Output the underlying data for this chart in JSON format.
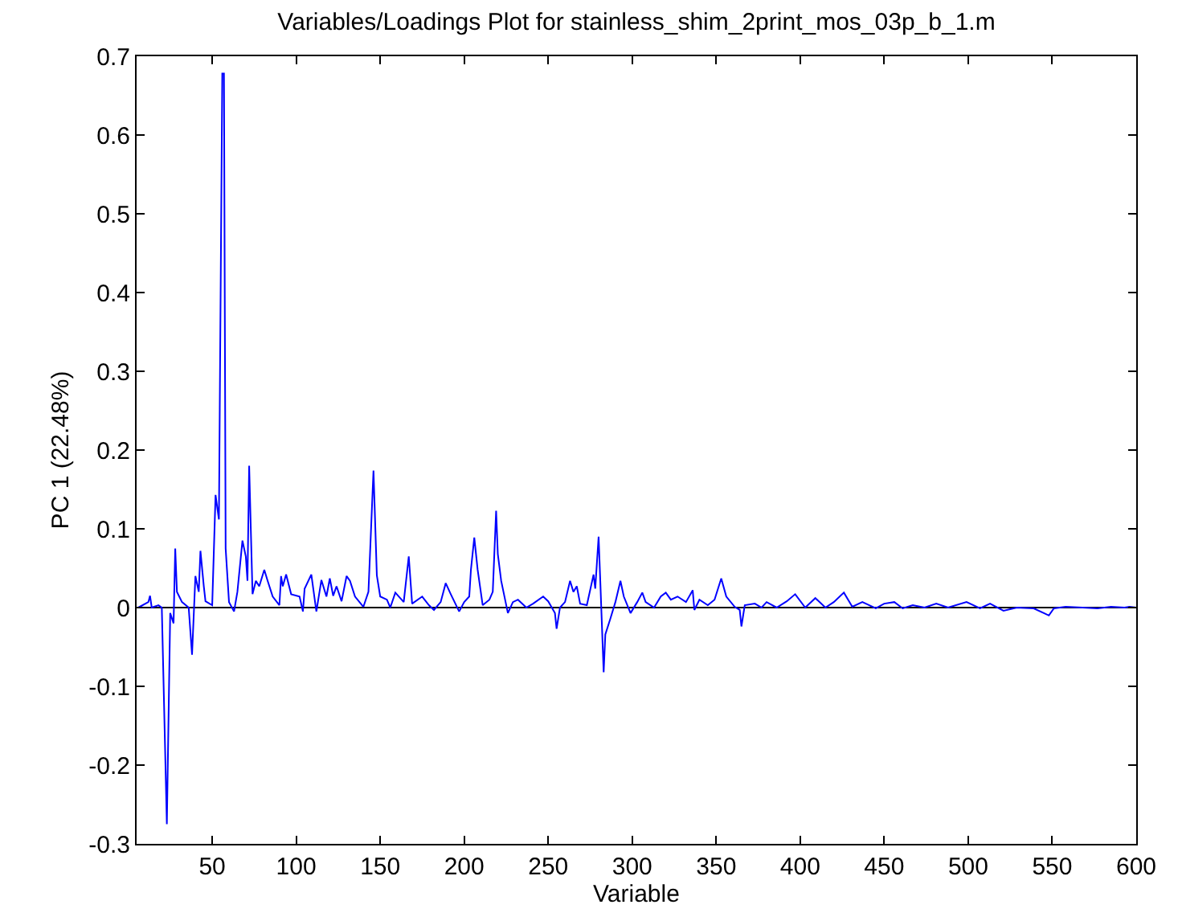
{
  "chart_data": {
    "type": "line",
    "title": "Variables/Loadings Plot for stainless_shim_2print_mos_03p_b_1.m",
    "xlabel": "Variable",
    "ylabel": "PC 1 (22.48%)",
    "xlim": [
      5,
      600
    ],
    "xticks": [
      50,
      100,
      150,
      200,
      250,
      300,
      350,
      400,
      450,
      500,
      550,
      600
    ],
    "ylim": [
      -0.3,
      0.7
    ],
    "yticks": [
      -0.3,
      -0.2,
      -0.1,
      0,
      0.1,
      0.2,
      0.3,
      0.4,
      0.5,
      0.6,
      0.7
    ],
    "grid": false,
    "marker": "none",
    "line_style": "solid",
    "ref_lines": [
      {
        "axis": "y",
        "value": 0,
        "color": "#000000"
      }
    ],
    "series": [
      {
        "color": "#0000ff",
        "x": [
          6,
          12,
          13,
          14,
          18,
          20,
          23,
          25,
          27,
          28,
          29,
          32,
          36,
          38,
          40,
          42,
          43,
          45,
          46,
          50,
          52,
          54,
          56,
          57,
          58,
          60,
          63,
          65,
          68,
          70,
          71,
          72,
          74,
          76,
          78,
          81,
          83,
          86,
          90,
          91,
          92,
          94,
          97,
          102,
          104,
          105,
          109,
          112,
          115,
          118,
          120,
          122,
          124,
          127,
          130,
          132,
          135,
          140,
          143,
          146,
          148,
          150,
          154,
          156,
          159,
          164,
          167,
          169,
          175,
          179,
          182,
          186,
          189,
          192,
          197,
          200,
          203,
          204,
          206,
          208,
          211,
          215,
          217,
          219,
          220,
          222,
          226,
          229,
          232,
          237,
          241,
          247,
          250,
          254,
          255,
          257,
          260,
          263,
          265,
          267,
          269,
          273,
          277,
          278,
          280,
          281,
          283,
          284,
          287,
          290,
          293,
          295,
          299,
          303,
          306,
          308,
          313,
          317,
          320,
          323,
          327,
          332,
          336,
          337,
          340,
          345,
          349,
          353,
          356,
          361,
          364,
          365,
          367,
          373,
          377,
          380,
          386,
          392,
          397,
          403,
          409,
          415,
          420,
          426,
          431,
          437,
          445,
          450,
          456,
          461,
          467,
          474,
          481,
          488,
          499,
          507,
          513,
          521,
          529,
          539,
          548,
          551,
          558,
          568,
          577,
          585,
          593,
          596,
          600
        ],
        "values": [
          0,
          0.007,
          0.015,
          0,
          0.003,
          0,
          -0.275,
          -0.007,
          -0.02,
          0.075,
          0.02,
          0.007,
          0,
          -0.06,
          0.04,
          0.02,
          0.072,
          0.027,
          0.008,
          0.003,
          0.143,
          0.112,
          0.678,
          0.678,
          0.075,
          0.007,
          -0.005,
          0.02,
          0.085,
          0.065,
          0.034,
          0.18,
          0.017,
          0.034,
          0.027,
          0.048,
          0.034,
          0.014,
          0.003,
          0.04,
          0.027,
          0.042,
          0.017,
          0.014,
          -0.005,
          0.024,
          0.042,
          -0.005,
          0.035,
          0.014,
          0.037,
          0.015,
          0.027,
          0.008,
          0.04,
          0.034,
          0.014,
          0.001,
          0.02,
          0.174,
          0.041,
          0.014,
          0.01,
          0,
          0.019,
          0.007,
          0.065,
          0.005,
          0.014,
          0.003,
          -0.003,
          0.007,
          0.031,
          0.017,
          -0.005,
          0.007,
          0.014,
          0.048,
          0.089,
          0.048,
          0.003,
          0.01,
          0.02,
          0.123,
          0.068,
          0.034,
          -0.007,
          0.007,
          0.01,
          0,
          0.005,
          0.014,
          0.008,
          -0.007,
          -0.027,
          0,
          0.007,
          0.034,
          0.02,
          0.027,
          0.005,
          0.003,
          0.042,
          0.024,
          0.09,
          0.034,
          -0.082,
          -0.034,
          -0.014,
          0.007,
          0.034,
          0.014,
          -0.007,
          0.007,
          0.019,
          0.007,
          0,
          0.014,
          0.019,
          0.01,
          0.014,
          0.007,
          0.022,
          -0.003,
          0.01,
          0.003,
          0.01,
          0.037,
          0.014,
          0.001,
          -0.003,
          -0.024,
          0.003,
          0.005,
          0,
          0.007,
          0,
          0.008,
          0.017,
          0,
          0.012,
          0,
          0.007,
          0.019,
          0.001,
          0.007,
          -0.001,
          0.005,
          0.007,
          -0.001,
          0.003,
          0,
          0.005,
          0,
          0.007,
          -0.001,
          0.005,
          -0.004,
          0,
          -0.001,
          -0.01,
          -0.001,
          0.001,
          0,
          -0.001,
          0.001,
          0,
          0.001,
          0
        ]
      }
    ]
  }
}
